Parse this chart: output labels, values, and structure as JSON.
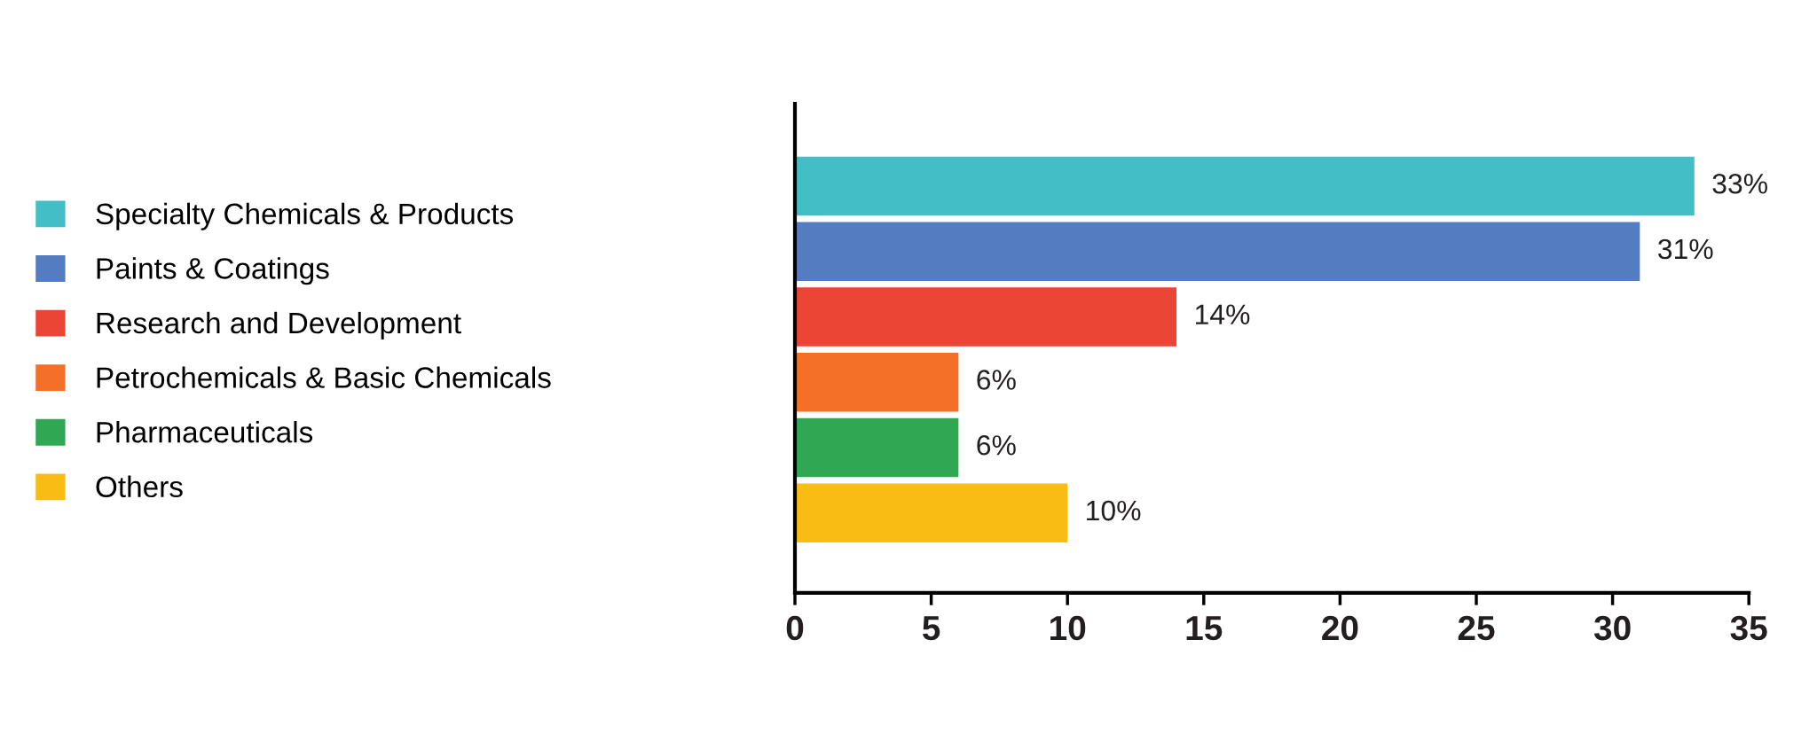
{
  "chart_data": {
    "type": "bar",
    "orientation": "horizontal",
    "categories": [
      null,
      null,
      null,
      null,
      null,
      null
    ],
    "series": [
      {
        "name": "Specialty Chemicals & Products",
        "color": "#43bec7",
        "values": [
          33,
          null,
          null,
          null,
          null,
          null
        ],
        "value_labels": [
          "33%",
          null,
          null,
          null,
          null,
          null
        ]
      },
      {
        "name": "Paints & Coatings",
        "color": "#537dc0",
        "values": [
          null,
          31,
          null,
          null,
          null,
          null
        ],
        "value_labels": [
          null,
          "31%",
          null,
          null,
          null,
          null
        ]
      },
      {
        "name": "Research and Development",
        "color": "#eb4535",
        "values": [
          null,
          null,
          14,
          null,
          null,
          null
        ],
        "value_labels": [
          null,
          null,
          "14%",
          null,
          null,
          null
        ]
      },
      {
        "name": "Petrochemicals & Basic Chemicals",
        "color": "#f47028",
        "values": [
          null,
          null,
          null,
          6,
          null,
          null
        ],
        "value_labels": [
          null,
          null,
          null,
          "6%",
          null,
          null
        ]
      },
      {
        "name": "Pharmaceuticals",
        "color": "#30a753",
        "values": [
          null,
          null,
          null,
          null,
          6,
          null
        ],
        "value_labels": [
          null,
          null,
          null,
          null,
          "6%",
          null
        ]
      },
      {
        "name": "Others",
        "color": "#f8bc15",
        "values": [
          null,
          null,
          null,
          null,
          null,
          10
        ],
        "value_labels": [
          null,
          null,
          null,
          null,
          null,
          "10%"
        ]
      }
    ],
    "xlim": [
      0,
      35
    ],
    "xticks": [
      0,
      5,
      10,
      15,
      20,
      25,
      30,
      35
    ],
    "tick_labels": "x",
    "grid": false,
    "legend": "left"
  }
}
